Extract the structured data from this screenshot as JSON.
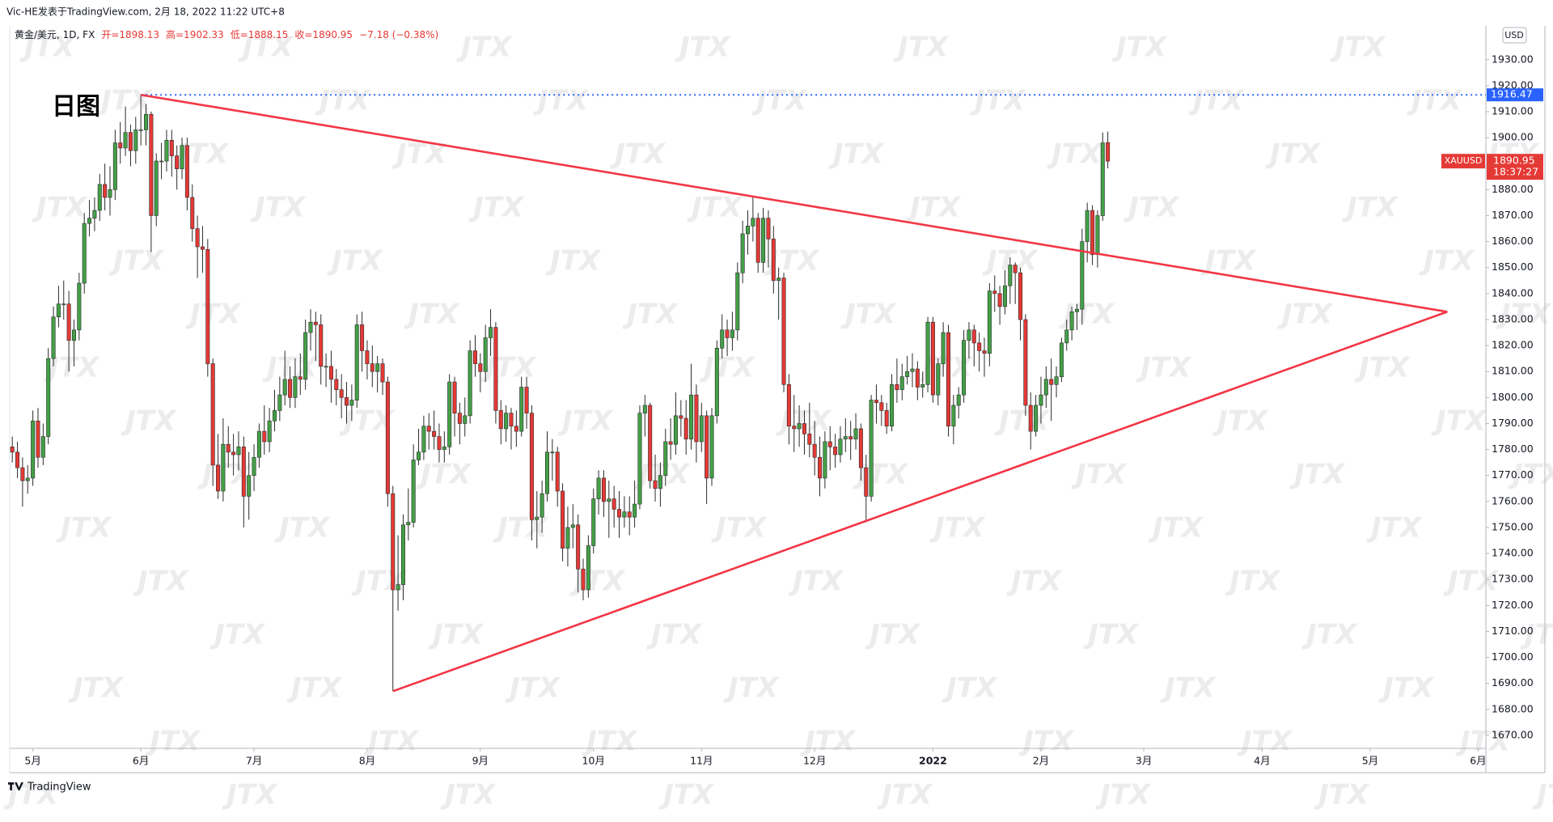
{
  "chart_data": {
    "type": "candlestick",
    "attribution": "Vic-HE发表于TradingView.com, 2月 18, 2022 11:22 UTC+8",
    "symbol": "黄金/美元, 1D, FX",
    "header_values": [
      "开=1898.13",
      "高=1902.33",
      "低=1888.15",
      "收=1890.95",
      "−7.18 (−0.38%)"
    ],
    "annotation": "日图",
    "currency": "USD",
    "series_name": "XAUUSD",
    "countdown": "18:37:27",
    "logo": "TradingView",
    "watermark": "JTX",
    "up_color": "#43a047",
    "down_color": "#e53935",
    "wick_color": "#2b2b2b",
    "line_color": "#f23645",
    "hline_color": "#2962ff",
    "grid": false,
    "hline": 1916.47,
    "trendlines": [
      {
        "x": [
          25,
          279
        ],
        "y": [
          1916.47,
          1833
        ]
      },
      {
        "x": [
          74,
          279
        ],
        "y": [
          1687,
          1833
        ]
      }
    ],
    "xlim": [
      -0.5,
      286.5
    ],
    "xticks": [
      {
        "value": 4,
        "label": "5月"
      },
      {
        "value": 25,
        "label": "6月"
      },
      {
        "value": 47,
        "label": "7月"
      },
      {
        "value": 69,
        "label": "8月"
      },
      {
        "value": 91,
        "label": "9月"
      },
      {
        "value": 113,
        "label": "10月"
      },
      {
        "value": 134,
        "label": "11月"
      },
      {
        "value": 156,
        "label": "12月"
      },
      {
        "value": 179,
        "label": "2022"
      },
      {
        "value": 200,
        "label": "2月"
      },
      {
        "value": 220,
        "label": "3月"
      },
      {
        "value": 243,
        "label": "4月"
      },
      {
        "value": 264,
        "label": "5月"
      },
      {
        "value": 285,
        "label": "6月"
      }
    ],
    "ylim": [
      1665,
      1943
    ],
    "yticks": [
      {
        "value": 1670,
        "label": "1670.00"
      },
      {
        "value": 1680,
        "label": "1680.00"
      },
      {
        "value": 1690,
        "label": "1690.00"
      },
      {
        "value": 1700,
        "label": "1700.00"
      },
      {
        "value": 1710,
        "label": "1710.00"
      },
      {
        "value": 1720,
        "label": "1720.00"
      },
      {
        "value": 1730,
        "label": "1730.00"
      },
      {
        "value": 1740,
        "label": "1740.00"
      },
      {
        "value": 1750,
        "label": "1750.00"
      },
      {
        "value": 1760,
        "label": "1760.00"
      },
      {
        "value": 1770,
        "label": "1770.00"
      },
      {
        "value": 1780,
        "label": "1780.00"
      },
      {
        "value": 1790,
        "label": "1790.00"
      },
      {
        "value": 1800,
        "label": "1800.00"
      },
      {
        "value": 1810,
        "label": "1810.00"
      },
      {
        "value": 1820,
        "label": "1820.00"
      },
      {
        "value": 1830,
        "label": "1830.00"
      },
      {
        "value": 1840,
        "label": "1840.00"
      },
      {
        "value": 1850,
        "label": "1850.00"
      },
      {
        "value": 1860,
        "label": "1860.00"
      },
      {
        "value": 1870,
        "label": "1870.00"
      },
      {
        "value": 1880,
        "label": "1880.00"
      },
      {
        "value": 1890,
        "label": "1890.00"
      },
      {
        "value": 1900,
        "label": "1900.00"
      },
      {
        "value": 1910,
        "label": "1910.00"
      },
      {
        "value": 1920,
        "label": "1920.00"
      },
      {
        "value": 1930,
        "label": "1930.00"
      }
    ],
    "open": [
      1781,
      1779,
      1773,
      1768,
      1769,
      1791,
      1777,
      1785,
      1815,
      1831,
      1836,
      1836,
      1822,
      1826,
      1844,
      1867,
      1869,
      1872,
      1882,
      1877,
      1880,
      1898,
      1896,
      1902,
      1895,
      1903,
      1903,
      1909,
      1870,
      1891,
      1891,
      1899,
      1893,
      1888,
      1897,
      1877,
      1865,
      1858,
      1857,
      1813,
      1774,
      1764,
      1782,
      1779,
      1778,
      1781,
      1762,
      1770,
      1777,
      1787,
      1783,
      1791,
      1795,
      1801,
      1807,
      1800,
      1808,
      1807,
      1825,
      1829,
      1828,
      1812,
      1812,
      1807,
      1803,
      1800,
      1797,
      1799,
      1828,
      1818,
      1813,
      1810,
      1813,
      1806,
      1763,
      1726,
      1728,
      1751,
      1752,
      1776,
      1779,
      1789,
      1787,
      1785,
      1780,
      1781,
      1806,
      1794,
      1790,
      1793,
      1818,
      1813,
      1810,
      1823,
      1827,
      1795,
      1788,
      1794,
      1789,
      1787,
      1804,
      1794,
      1753,
      1754,
      1763,
      1779,
      1779,
      1764,
      1742,
      1750,
      1751,
      1734,
      1726,
      1743,
      1761,
      1769,
      1760,
      1761,
      1757,
      1754,
      1756,
      1754,
      1759,
      1794,
      1797,
      1768,
      1765,
      1770,
      1783,
      1782,
      1793,
      1792,
      1784,
      1801,
      1783,
      1793,
      1769,
      1793,
      1819,
      1826,
      1823,
      1826,
      1848,
      1863,
      1866,
      1869,
      1852,
      1869,
      1861,
      1845,
      1846,
      1805,
      1789,
      1788,
      1790,
      1786,
      1782,
      1777,
      1769,
      1783,
      1781,
      1778,
      1784,
      1785,
      1784,
      1788,
      1773,
      1762,
      1799,
      1798,
      1795,
      1789,
      1805,
      1803,
      1808,
      1810,
      1811,
      1804,
      1805,
      1829,
      1801,
      1813,
      1825,
      1789,
      1797,
      1801,
      1822,
      1826,
      1821,
      1818,
      1817,
      1841,
      1840,
      1835,
      1843,
      1851,
      1848,
      1830,
      1797,
      1787,
      1797,
      1801,
      1807,
      1805,
      1808,
      1821,
      1826,
      1833,
      1834,
      1860,
      1872,
      1855,
      1870,
      1898.13
    ],
    "high": [
      1785,
      1783,
      1777,
      1774,
      1795,
      1796,
      1790,
      1819,
      1835,
      1843,
      1845,
      1841,
      1830,
      1848,
      1871,
      1876,
      1877,
      1886,
      1890,
      1889,
      1903,
      1906,
      1912,
      1905,
      1908,
      1916.47,
      1913,
      1910,
      1894,
      1898,
      1903,
      1903,
      1897,
      1900,
      1900,
      1882,
      1870,
      1866,
      1861,
      1815,
      1786,
      1792,
      1789,
      1786,
      1787,
      1785,
      1779,
      1782,
      1790,
      1797,
      1796,
      1803,
      1808,
      1818,
      1812,
      1815,
      1817,
      1830,
      1834,
      1833,
      1832,
      1817,
      1818,
      1811,
      1809,
      1806,
      1805,
      1832,
      1833,
      1822,
      1820,
      1816,
      1815,
      1808,
      1766,
      1747,
      1755,
      1765,
      1782,
      1788,
      1793,
      1794,
      1795,
      1790,
      1787,
      1809,
      1808,
      1798,
      1800,
      1822,
      1824,
      1817,
      1828,
      1834,
      1829,
      1799,
      1797,
      1796,
      1795,
      1808,
      1808,
      1797,
      1764,
      1768,
      1787,
      1784,
      1781,
      1767,
      1758,
      1759,
      1755,
      1738,
      1747,
      1765,
      1772,
      1772,
      1768,
      1766,
      1764,
      1762,
      1762,
      1768,
      1797,
      1801,
      1798,
      1778,
      1775,
      1788,
      1792,
      1802,
      1799,
      1799,
      1813,
      1805,
      1798,
      1795,
      1796,
      1822,
      1832,
      1830,
      1833,
      1852,
      1868,
      1872,
      1877,
      1871,
      1873,
      1872,
      1866,
      1850,
      1848,
      1809,
      1801,
      1797,
      1795,
      1798,
      1791,
      1785,
      1787,
      1789,
      1786,
      1789,
      1792,
      1791,
      1794,
      1790,
      1778,
      1801,
      1805,
      1801,
      1798,
      1809,
      1815,
      1813,
      1816,
      1817,
      1814,
      1810,
      1831,
      1831,
      1815,
      1829,
      1828,
      1801,
      1804,
      1826,
      1829,
      1828,
      1825,
      1823,
      1844,
      1847,
      1843,
      1849,
      1854,
      1852,
      1850,
      1832,
      1802,
      1801,
      1808,
      1812,
      1815,
      1812,
      1823,
      1830,
      1835,
      1836,
      1865,
      1875,
      1874,
      1872,
      1902,
      1902.33
    ],
    "low": [
      1775,
      1769,
      1758,
      1763,
      1766,
      1773,
      1774,
      1782,
      1812,
      1827,
      1830,
      1810,
      1812,
      1822,
      1840,
      1862,
      1864,
      1868,
      1872,
      1870,
      1876,
      1890,
      1893,
      1889,
      1890,
      1897,
      1897,
      1856,
      1866,
      1884,
      1887,
      1885,
      1880,
      1884,
      1872,
      1860,
      1846,
      1848,
      1808,
      1766,
      1761,
      1760,
      1773,
      1770,
      1772,
      1750,
      1753,
      1764,
      1773,
      1778,
      1779,
      1787,
      1791,
      1797,
      1796,
      1796,
      1801,
      1803,
      1818,
      1814,
      1805,
      1804,
      1798,
      1797,
      1792,
      1790,
      1791,
      1796,
      1810,
      1807,
      1804,
      1802,
      1801,
      1758,
      1687,
      1718,
      1722,
      1745,
      1750,
      1774,
      1776,
      1780,
      1780,
      1775,
      1775,
      1778,
      1785,
      1782,
      1785,
      1790,
      1808,
      1802,
      1806,
      1816,
      1790,
      1782,
      1783,
      1780,
      1781,
      1785,
      1788,
      1745,
      1742,
      1748,
      1760,
      1768,
      1758,
      1737,
      1735,
      1742,
      1725,
      1722,
      1723,
      1740,
      1755,
      1754,
      1746,
      1750,
      1746,
      1750,
      1747,
      1750,
      1757,
      1785,
      1765,
      1760,
      1758,
      1766,
      1776,
      1778,
      1785,
      1778,
      1780,
      1775,
      1779,
      1759,
      1766,
      1790,
      1815,
      1816,
      1818,
      1822,
      1844,
      1855,
      1860,
      1848,
      1848,
      1850,
      1840,
      1830,
      1802,
      1782,
      1779,
      1781,
      1778,
      1777,
      1770,
      1762,
      1765,
      1772,
      1773,
      1775,
      1779,
      1776,
      1780,
      1768,
      1752,
      1760,
      1790,
      1789,
      1786,
      1787,
      1798,
      1799,
      1805,
      1804,
      1799,
      1800,
      1802,
      1798,
      1797,
      1808,
      1785,
      1782,
      1792,
      1798,
      1815,
      1812,
      1810,
      1808,
      1812,
      1833,
      1828,
      1832,
      1836,
      1836,
      1822,
      1793,
      1780,
      1785,
      1790,
      1796,
      1791,
      1800,
      1806,
      1818,
      1822,
      1826,
      1828,
      1852,
      1851,
      1850,
      1868,
      1888.15
    ],
    "close": [
      1779,
      1773,
      1768,
      1769,
      1791,
      1777,
      1785,
      1815,
      1831,
      1836,
      1836,
      1822,
      1826,
      1844,
      1867,
      1869,
      1872,
      1882,
      1877,
      1880,
      1898,
      1896,
      1902,
      1895,
      1903,
      1903,
      1909,
      1870,
      1891,
      1891,
      1899,
      1893,
      1888,
      1897,
      1877,
      1865,
      1858,
      1857,
      1813,
      1774,
      1764,
      1782,
      1779,
      1778,
      1781,
      1762,
      1770,
      1777,
      1787,
      1783,
      1791,
      1795,
      1801,
      1807,
      1800,
      1808,
      1807,
      1825,
      1829,
      1828,
      1812,
      1812,
      1807,
      1803,
      1800,
      1797,
      1799,
      1828,
      1818,
      1813,
      1810,
      1813,
      1806,
      1763,
      1726,
      1728,
      1751,
      1752,
      1776,
      1779,
      1789,
      1787,
      1785,
      1780,
      1781,
      1806,
      1794,
      1790,
      1793,
      1818,
      1813,
      1810,
      1823,
      1827,
      1795,
      1788,
      1794,
      1789,
      1787,
      1804,
      1794,
      1753,
      1754,
      1763,
      1779,
      1779,
      1764,
      1742,
      1750,
      1751,
      1734,
      1726,
      1743,
      1761,
      1769,
      1760,
      1761,
      1757,
      1754,
      1756,
      1754,
      1759,
      1794,
      1797,
      1768,
      1765,
      1770,
      1783,
      1782,
      1793,
      1792,
      1784,
      1801,
      1783,
      1793,
      1769,
      1793,
      1819,
      1826,
      1823,
      1826,
      1848,
      1863,
      1866,
      1869,
      1852,
      1869,
      1861,
      1845,
      1846,
      1805,
      1789,
      1788,
      1790,
      1786,
      1782,
      1777,
      1769,
      1783,
      1781,
      1778,
      1784,
      1785,
      1784,
      1788,
      1773,
      1762,
      1799,
      1798,
      1795,
      1789,
      1805,
      1803,
      1808,
      1810,
      1811,
      1804,
      1805,
      1829,
      1801,
      1813,
      1825,
      1789,
      1797,
      1801,
      1822,
      1826,
      1821,
      1818,
      1817,
      1841,
      1840,
      1835,
      1843,
      1851,
      1848,
      1830,
      1797,
      1787,
      1797,
      1801,
      1807,
      1805,
      1808,
      1821,
      1826,
      1833,
      1834,
      1860,
      1872,
      1855,
      1870,
      1898,
      1890.95
    ]
  }
}
